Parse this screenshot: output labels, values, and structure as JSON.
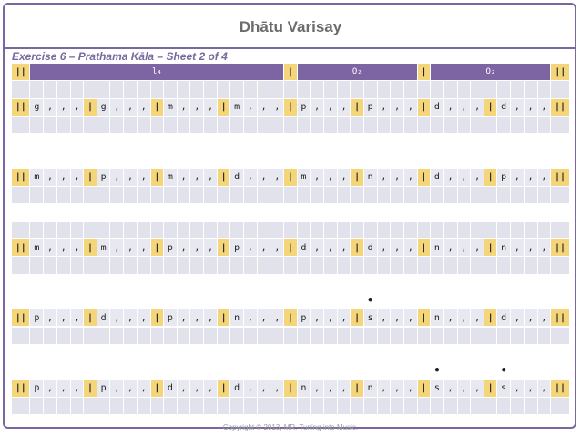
{
  "title": "Dhātu Varisay",
  "subtitle": "Exercise 6 – Prathama Kāla – Sheet 2 of 4",
  "footer": "Copyright © 2013, MR. Tuning into Music.",
  "colors": {
    "accent": "#7d65a3",
    "bar": "#f5d57a",
    "cell": "#e8e8f0"
  },
  "header": {
    "bar_double": "||",
    "bar_single": "|",
    "laghu": "l₄",
    "drutam1": "O₂",
    "drutam2": "O₂"
  },
  "rows": [
    {
      "type": "header"
    },
    {
      "type": "empty"
    },
    {
      "type": "notes",
      "cells": [
        "||",
        "g",
        ",",
        ",",
        ",",
        "|",
        "g",
        ",",
        ",",
        ",",
        "|",
        "m",
        ",",
        ",",
        ",",
        "|",
        "m",
        ",",
        ",",
        ",",
        "|",
        "p",
        ",",
        ",",
        ",",
        "|",
        "p",
        ",",
        ",",
        ",",
        "|",
        "d",
        ",",
        ",",
        ",",
        "|",
        "d",
        ",",
        ",",
        ",",
        "||"
      ]
    },
    {
      "type": "empty"
    },
    {
      "type": "spacer"
    },
    {
      "type": "spacer"
    },
    {
      "type": "notes",
      "cells": [
        "||",
        "m",
        ",",
        ",",
        ",",
        "|",
        "p",
        ",",
        ",",
        ",",
        "|",
        "m",
        ",",
        ",",
        ",",
        "|",
        "d",
        ",",
        ",",
        ",",
        "|",
        "m",
        ",",
        ",",
        ",",
        "|",
        "n",
        ",",
        ",",
        ",",
        "|",
        "d",
        ",",
        ",",
        ",",
        "|",
        "p",
        ",",
        ",",
        ",",
        "||"
      ]
    },
    {
      "type": "empty"
    },
    {
      "type": "spacer"
    },
    {
      "type": "empty"
    },
    {
      "type": "notes",
      "cells": [
        "||",
        "m",
        ",",
        ",",
        ",",
        "|",
        "m",
        ",",
        ",",
        ",",
        "|",
        "p",
        ",",
        ",",
        ",",
        "|",
        "p",
        ",",
        ",",
        ",",
        "|",
        "d",
        ",",
        ",",
        ",",
        "|",
        "d",
        ",",
        ",",
        ",",
        "|",
        "n",
        ",",
        ",",
        ",",
        "|",
        "n",
        ",",
        ",",
        ",",
        "||"
      ]
    },
    {
      "type": "empty"
    },
    {
      "type": "spacer"
    },
    {
      "type": "dots",
      "positions": [
        26
      ]
    },
    {
      "type": "notes",
      "cells": [
        "||",
        "p",
        ",",
        ",",
        ",",
        "|",
        "d",
        ",",
        ",",
        ",",
        "|",
        "p",
        ",",
        ",",
        ",",
        "|",
        "n",
        ",",
        ",",
        ",",
        "|",
        "p",
        ",",
        ",",
        ",",
        "|",
        "s",
        ",",
        ",",
        ",",
        "|",
        "n",
        ",",
        ",",
        ",",
        "|",
        "d",
        ",",
        ",",
        ",",
        "||"
      ]
    },
    {
      "type": "empty"
    },
    {
      "type": "spacer"
    },
    {
      "type": "dots",
      "positions": [
        31,
        36
      ]
    },
    {
      "type": "notes",
      "cells": [
        "||",
        "p",
        ",",
        ",",
        ",",
        "|",
        "p",
        ",",
        ",",
        ",",
        "|",
        "d",
        ",",
        ",",
        ",",
        "|",
        "d",
        ",",
        ",",
        ",",
        "|",
        "n",
        ",",
        ",",
        ",",
        "|",
        "n",
        ",",
        ",",
        ",",
        "|",
        "s",
        ",",
        ",",
        ",",
        "|",
        "s",
        ",",
        ",",
        ",",
        "||"
      ]
    },
    {
      "type": "empty"
    }
  ]
}
